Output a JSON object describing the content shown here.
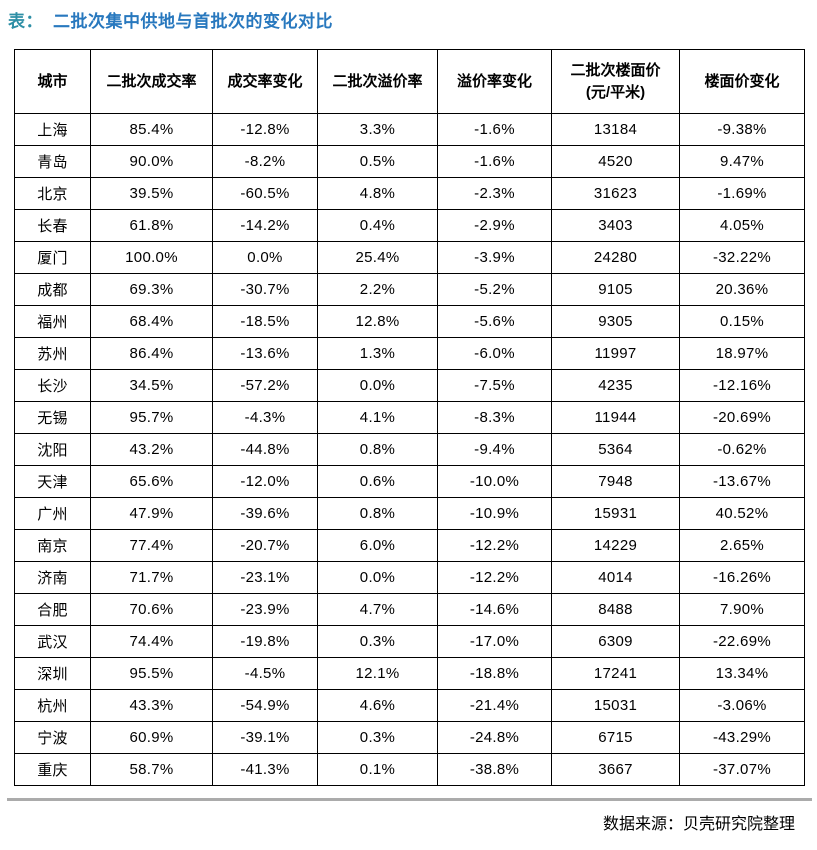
{
  "title": {
    "prefix": "表：",
    "text": "二批次集中供地与首批次的变化对比"
  },
  "colors": {
    "title_prefix": "#2E8FA6",
    "title_text": "#2878BE",
    "table_border": "#000000",
    "divider": "#ABABAB"
  },
  "table": {
    "headers": [
      {
        "label": "城市"
      },
      {
        "label": "二批次成交率"
      },
      {
        "label": "成交率变化"
      },
      {
        "label": "二批次溢价率"
      },
      {
        "label": "溢价率变化"
      },
      {
        "label": "二批次楼面价",
        "sublabel": "(元/平米)"
      },
      {
        "label": "楼面价变化"
      }
    ],
    "rows": [
      [
        "上海",
        "85.4%",
        "-12.8%",
        "3.3%",
        "-1.6%",
        "13184",
        "-9.38%"
      ],
      [
        "青岛",
        "90.0%",
        "-8.2%",
        "0.5%",
        "-1.6%",
        "4520",
        "9.47%"
      ],
      [
        "北京",
        "39.5%",
        "-60.5%",
        "4.8%",
        "-2.3%",
        "31623",
        "-1.69%"
      ],
      [
        "长春",
        "61.8%",
        "-14.2%",
        "0.4%",
        "-2.9%",
        "3403",
        "4.05%"
      ],
      [
        "厦门",
        "100.0%",
        "0.0%",
        "25.4%",
        "-3.9%",
        "24280",
        "-32.22%"
      ],
      [
        "成都",
        "69.3%",
        "-30.7%",
        "2.2%",
        "-5.2%",
        "9105",
        "20.36%"
      ],
      [
        "福州",
        "68.4%",
        "-18.5%",
        "12.8%",
        "-5.6%",
        "9305",
        "0.15%"
      ],
      [
        "苏州",
        "86.4%",
        "-13.6%",
        "1.3%",
        "-6.0%",
        "11997",
        "18.97%"
      ],
      [
        "长沙",
        "34.5%",
        "-57.2%",
        "0.0%",
        "-7.5%",
        "4235",
        "-12.16%"
      ],
      [
        "无锡",
        "95.7%",
        "-4.3%",
        "4.1%",
        "-8.3%",
        "11944",
        "-20.69%"
      ],
      [
        "沈阳",
        "43.2%",
        "-44.8%",
        "0.8%",
        "-9.4%",
        "5364",
        "-0.62%"
      ],
      [
        "天津",
        "65.6%",
        "-12.0%",
        "0.6%",
        "-10.0%",
        "7948",
        "-13.67%"
      ],
      [
        "广州",
        "47.9%",
        "-39.6%",
        "0.8%",
        "-10.9%",
        "15931",
        "40.52%"
      ],
      [
        "南京",
        "77.4%",
        "-20.7%",
        "6.0%",
        "-12.2%",
        "14229",
        "2.65%"
      ],
      [
        "济南",
        "71.7%",
        "-23.1%",
        "0.0%",
        "-12.2%",
        "4014",
        "-16.26%"
      ],
      [
        "合肥",
        "70.6%",
        "-23.9%",
        "4.7%",
        "-14.6%",
        "8488",
        "7.90%"
      ],
      [
        "武汉",
        "74.4%",
        "-19.8%",
        "0.3%",
        "-17.0%",
        "6309",
        "-22.69%"
      ],
      [
        "深圳",
        "95.5%",
        "-4.5%",
        "12.1%",
        "-18.8%",
        "17241",
        "13.34%"
      ],
      [
        "杭州",
        "43.3%",
        "-54.9%",
        "4.6%",
        "-21.4%",
        "15031",
        "-3.06%"
      ],
      [
        "宁波",
        "60.9%",
        "-39.1%",
        "0.3%",
        "-24.8%",
        "6715",
        "-43.29%"
      ],
      [
        "重庆",
        "58.7%",
        "-41.3%",
        "0.1%",
        "-38.8%",
        "3667",
        "-37.07%"
      ]
    ]
  },
  "footer": {
    "source": "数据来源：贝壳研究院整理"
  }
}
